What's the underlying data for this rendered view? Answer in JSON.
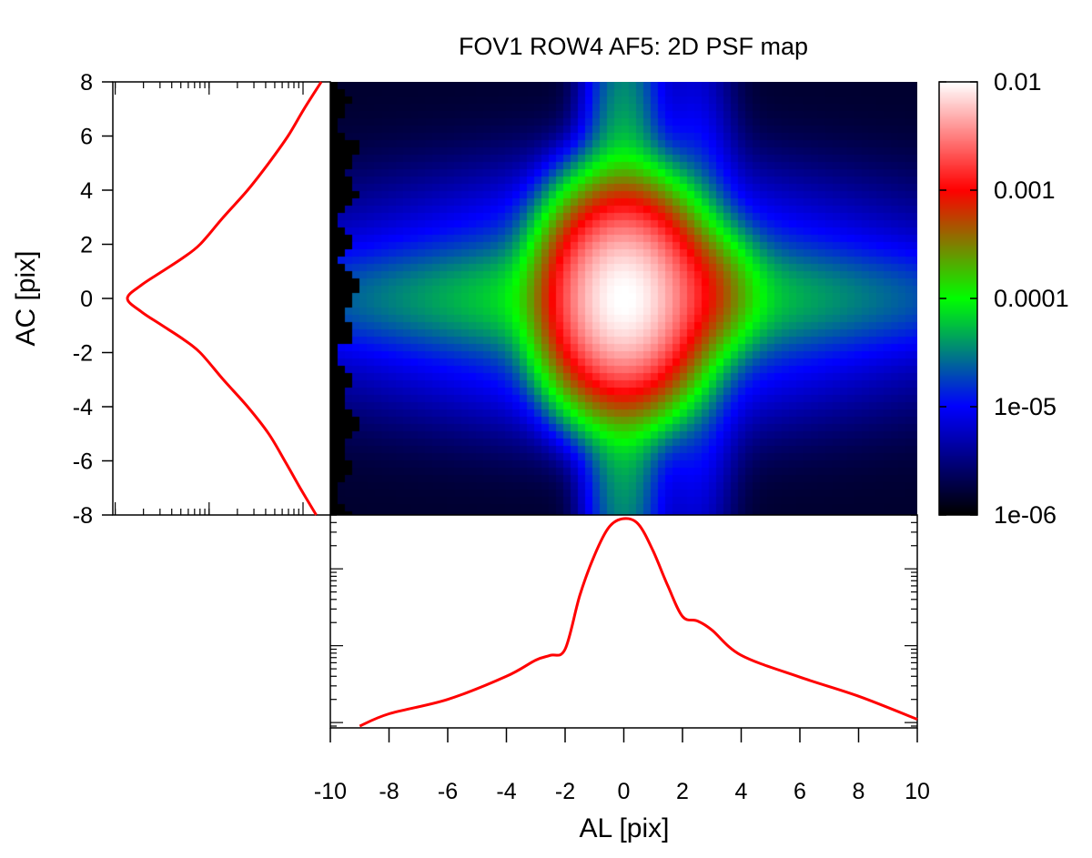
{
  "chart_data": {
    "type": "heatmap",
    "title": "FOV1 ROW4 AF5: 2D PSF map",
    "xlabel": "AL [pix]",
    "ylabel": "AC [pix]",
    "xlim": [
      -10,
      10
    ],
    "ylim": [
      -8,
      8
    ],
    "x_ticks": [
      "-10",
      "-8",
      "-6",
      "-4",
      "-2",
      "0",
      "2",
      "4",
      "6",
      "8",
      "10"
    ],
    "y_ticks": [
      "8",
      "6",
      "4",
      "2",
      "0",
      "-2",
      "-4",
      "-6",
      "-8"
    ],
    "colorbar": {
      "scale": "log",
      "range": [
        1e-06,
        0.01
      ],
      "tick_labels": [
        "0.01",
        "0.001",
        "0.0001",
        "1e-05",
        "1e-06"
      ],
      "colors": [
        "#000000",
        "#0000ff",
        "#00ff00",
        "#ff0000",
        "#ffffff"
      ]
    },
    "heatmap_model": {
      "core": {
        "x": 0,
        "y": 0,
        "peak": 0.01,
        "sigma_x": 1.1,
        "sigma_y": 1.6
      },
      "secondary": {
        "x": 2.3,
        "y": 0.2,
        "peak": 0.0006,
        "sigma_x": 1.0,
        "sigma_y": 1.1
      },
      "al_streak": {
        "peak": 0.00012,
        "sigma_ac": 1.0,
        "al_scale": 4.5
      },
      "ac_streak": {
        "peak": 0.00012,
        "sigma_al": 0.7,
        "ac_scale": 6.0
      },
      "background": 1.5e-06,
      "masked_below_x": -9.4
    },
    "ac_profile": {
      "color": "#ff0000",
      "ac": [
        -8,
        -7,
        -6,
        -5,
        -4,
        -3,
        -2,
        -1.5,
        -1,
        -0.5,
        0,
        0.5,
        1,
        1.5,
        2,
        3,
        4,
        5,
        6,
        7,
        8
      ],
      "value": [
        2e-05,
        5e-05,
        0.00012,
        0.0003,
        0.001,
        0.004,
        0.015,
        0.04,
        0.13,
        0.42,
        0.95,
        0.42,
        0.13,
        0.04,
        0.015,
        0.004,
        0.001,
        0.0003,
        0.0001,
        4e-05,
        1.5e-05
      ],
      "scale": "log"
    },
    "al_profile": {
      "color": "#ff0000",
      "al": [
        -9,
        -8,
        -6,
        -4,
        -3,
        -2.5,
        -2,
        -1.5,
        -1,
        -0.5,
        0,
        0.5,
        1,
        1.5,
        2,
        2.5,
        3,
        4,
        6,
        8,
        10
      ],
      "value": [
        0.0009,
        0.0013,
        0.002,
        0.004,
        0.0065,
        0.0075,
        0.009,
        0.045,
        0.15,
        0.35,
        0.45,
        0.38,
        0.17,
        0.06,
        0.024,
        0.021,
        0.016,
        0.0075,
        0.0039,
        0.0022,
        0.0011
      ],
      "scale": "log"
    }
  }
}
